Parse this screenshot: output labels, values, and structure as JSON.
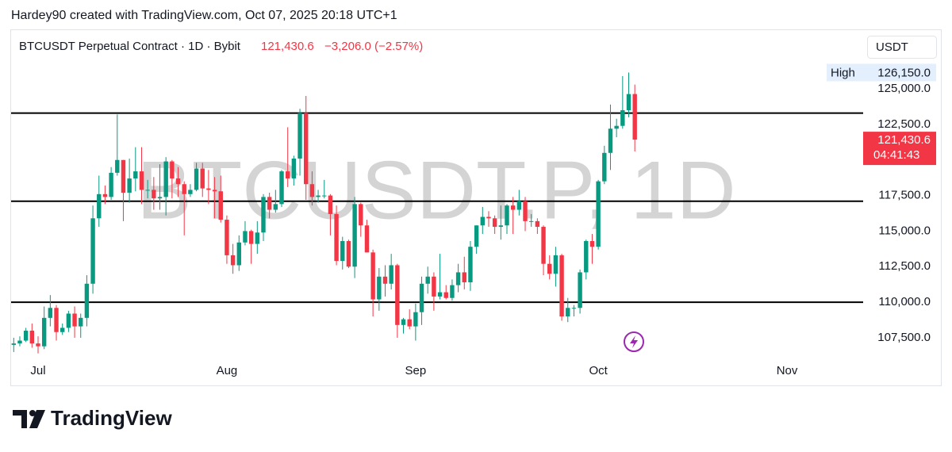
{
  "author_line": "Hardey90 created with TradingView.com, Oct 07, 2025 20:18 UTC+1",
  "footer_brand": "TradingView",
  "chart_data": {
    "type": "candlestick",
    "title": "BTCUSDT Perpetual Contract · 1D · Bybit",
    "watermark": "BTCUSDT.P, 1D",
    "currency": "USDT",
    "last_price": {
      "value": 121430.6,
      "label": "121,430.6"
    },
    "change": "−3,206.0 (−2.57%)",
    "countdown": "04:41:43",
    "high_marker": {
      "name": "High",
      "value": 126150,
      "label": "126,150.0"
    },
    "up_color": "#089981",
    "down_color": "#f23645",
    "levels": [
      123300,
      117100,
      110000
    ],
    "level_color": "#000000",
    "xlim": [
      -0.43,
      139.5
    ],
    "xticks": [
      {
        "value": 4,
        "label": "Jul"
      },
      {
        "value": 35,
        "label": "Aug"
      },
      {
        "value": 66,
        "label": "Sep"
      },
      {
        "value": 96,
        "label": "Oct"
      },
      {
        "value": 127,
        "label": "Nov"
      }
    ],
    "ylim": [
      105880,
      129130
    ],
    "yticks": [
      {
        "value": 107500,
        "label": "107,500.0"
      },
      {
        "value": 110000,
        "label": "110,000.0"
      },
      {
        "value": 112500,
        "label": "112,500.0"
      },
      {
        "value": 115000,
        "label": "115,000.0"
      },
      {
        "value": 117500,
        "label": "117,500.0"
      },
      {
        "value": 122500,
        "label": "122,500.0"
      },
      {
        "value": 125000,
        "label": "125,000.0"
      }
    ],
    "open": [
      107000,
      107100,
      107300,
      108000,
      107100,
      106900,
      108900,
      109600,
      107900,
      108200,
      109200,
      108300,
      108900,
      111300,
      115900,
      117600,
      117400,
      119100,
      120000,
      117700,
      118700,
      119200,
      117900,
      117900,
      117300,
      117400,
      119900,
      118700,
      118300,
      117600,
      117900,
      119400,
      118000,
      117900,
      117800,
      115800,
      113300,
      112600,
      114200,
      115000,
      114100,
      114900,
      117400,
      116500,
      116900,
      119200,
      118700,
      120100,
      123300,
      118300,
      117400,
      117500,
      117500,
      116200,
      112900,
      114300,
      112500,
      116900,
      115400,
      113500,
      110200,
      111800,
      111300,
      112600,
      108400,
      108800,
      108300,
      109300,
      111300,
      111800,
      110400,
      110700,
      110300,
      111200,
      112100,
      111400,
      113900,
      115400,
      116000,
      115900,
      115300,
      115400,
      116800,
      116500,
      117100,
      115700,
      115700,
      115300,
      112700,
      112000,
      113300,
      109000,
      109600,
      109600,
      112100,
      114300,
      113900,
      118500,
      120500,
      122200,
      122400,
      123500,
      124636.6
    ],
    "high": [
      107500,
      107600,
      108200,
      108500,
      107600,
      109700,
      110500,
      109800,
      108500,
      109400,
      109700,
      109200,
      111900,
      116800,
      118900,
      118200,
      119500,
      123200,
      120000,
      120100,
      120900,
      120900,
      118600,
      118800,
      119700,
      120200,
      120000,
      119500,
      118500,
      118300,
      119800,
      119800,
      119300,
      118800,
      118900,
      116100,
      114100,
      114700,
      115700,
      115100,
      115700,
      117600,
      117700,
      117900,
      119300,
      122300,
      120300,
      123600,
      124500,
      119200,
      117900,
      118600,
      117600,
      116800,
      114600,
      114400,
      117400,
      117000,
      115800,
      113700,
      112400,
      112600,
      113400,
      112700,
      108900,
      109500,
      109900,
      111800,
      112500,
      112100,
      113400,
      111200,
      111600,
      112700,
      113200,
      114300,
      115400,
      116700,
      116400,
      116100,
      116800,
      116900,
      117400,
      117900,
      117400,
      116200,
      115900,
      115400,
      113300,
      113900,
      113400,
      110300,
      109800,
      112300,
      114400,
      114800,
      118600,
      121000,
      123900,
      122900,
      125900,
      126150,
      125300
    ],
    "low": [
      106500,
      106900,
      107200,
      106800,
      106400,
      106700,
      108300,
      107300,
      107700,
      107900,
      107500,
      107500,
      108300,
      110600,
      115300,
      116900,
      117200,
      118900,
      115700,
      117000,
      117800,
      116900,
      117300,
      116500,
      116500,
      116100,
      117300,
      117400,
      114700,
      117400,
      117800,
      117400,
      116900,
      115900,
      115600,
      112700,
      112000,
      112200,
      114000,
      112700,
      113400,
      114300,
      115900,
      116300,
      116700,
      118100,
      118200,
      118900,
      117200,
      116800,
      117000,
      117300,
      114700,
      112600,
      112300,
      112400,
      111700,
      114600,
      113500,
      109000,
      109400,
      110400,
      110900,
      107500,
      107800,
      108100,
      107300,
      108400,
      110600,
      109400,
      110200,
      110200,
      110100,
      110700,
      110900,
      110800,
      113400,
      114800,
      115300,
      114800,
      114400,
      114800,
      114800,
      116100,
      115000,
      115300,
      114800,
      111900,
      111600,
      111100,
      108700,
      108600,
      109000,
      109200,
      111600,
      112700,
      113700,
      118300,
      119300,
      121600,
      122200,
      123000,
      120600
    ],
    "close": [
      107100,
      107300,
      108000,
      107100,
      106900,
      108900,
      109600,
      107900,
      108200,
      109200,
      108300,
      108900,
      111300,
      115900,
      117600,
      117400,
      119100,
      120000,
      117700,
      118700,
      119200,
      117900,
      117900,
      117300,
      117400,
      119900,
      118700,
      118300,
      117600,
      117900,
      119400,
      118000,
      117900,
      117800,
      115800,
      113300,
      112600,
      114200,
      115000,
      114100,
      114900,
      117400,
      116500,
      116900,
      119200,
      118700,
      120100,
      123300,
      118300,
      117400,
      117500,
      117500,
      116200,
      112900,
      114300,
      112500,
      116900,
      115400,
      113500,
      110200,
      111800,
      111300,
      112600,
      108400,
      108800,
      108300,
      109300,
      111300,
      111800,
      110400,
      110700,
      110300,
      111200,
      112100,
      111400,
      113900,
      115400,
      116000,
      115900,
      115300,
      115400,
      116800,
      116500,
      117100,
      115700,
      115700,
      115300,
      112700,
      112000,
      113300,
      109000,
      109600,
      109600,
      112100,
      114300,
      113900,
      118500,
      120500,
      122200,
      122400,
      123500,
      124636.6,
      121430.6
    ]
  }
}
